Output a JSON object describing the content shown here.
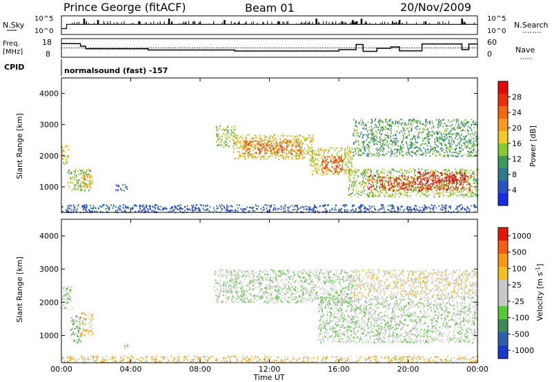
{
  "header": {
    "station": "Prince George (fitACF)",
    "beam": "Beam 01",
    "date": "20/Nov/2009"
  },
  "strip_labels": {
    "nsky": "N.Sky",
    "nsky_ticks": [
      "10^5",
      "10^0"
    ],
    "nsearch": "N.Search",
    "nsearch_ticks": [
      "10^5",
      "10^0"
    ],
    "freq_line1": "Freq.",
    "freq_line2": "[MHz]",
    "freq_ticks": [
      "18",
      "8"
    ],
    "nave": "Nave",
    "nave_ticks": [
      "60",
      "0"
    ],
    "cpid": "CPID",
    "mode": "normalsound (fast) -157"
  },
  "axes": {
    "x_label": "Time UT",
    "x_ticks": [
      "00:00",
      "04:00",
      "08:00",
      "12:00",
      "16:00",
      "20:00",
      "00:00"
    ],
    "y_label": "Slant Range [km]",
    "y_ticks": [
      "1000",
      "2000",
      "3000",
      "4000"
    ],
    "y_range_km": [
      180,
      4500
    ],
    "x_range_hours": [
      0,
      24
    ]
  },
  "colorbars": {
    "power": {
      "label": "Power [dB]",
      "ticks": [
        "4",
        "8",
        "12",
        "16",
        "20",
        "24",
        "28"
      ],
      "colors": [
        "#1a2be0",
        "#2a52c0",
        "#2e7a8a",
        "#3d9a5a",
        "#8ac832",
        "#f0c828",
        "#f59a1e",
        "#f06a16",
        "#e8320e",
        "#e00a0a"
      ]
    },
    "velocity": {
      "label": "Velocity [m s",
      "label_sup": "-1",
      "label_end": "]",
      "ticks": [
        "1000",
        "500",
        "100",
        "25",
        "-25",
        "-100",
        "-500",
        "-1000"
      ],
      "colors": [
        "#1a38c8",
        "#2e60a8",
        "#3a8a5a",
        "#58c83a",
        "#c8c8c8",
        "#c8c8c8",
        "#f0c020",
        "#f59a18",
        "#f06010",
        "#e01a0a"
      ]
    }
  },
  "chart_data": [
    {
      "type": "line",
      "title": "N.Sky / N.Search",
      "x_range": [
        0,
        24
      ],
      "step_levels": [
        {
          "t_start": 0.0,
          "t_end": 0.3,
          "value": 0.3
        },
        {
          "t_start": 0.3,
          "t_end": 24.0,
          "value": 0.55
        }
      ],
      "spikes_hours": [
        1.3,
        2.1,
        4.5,
        6.2,
        9.4,
        12.5,
        14.7,
        16.8,
        17.0,
        17.3,
        19.5,
        21.0,
        23.1
      ]
    },
    {
      "type": "line",
      "title": "Freq / Nave",
      "x_range": [
        0,
        24
      ],
      "freq_steps": [
        {
          "t_start": 0.0,
          "t_end": 1.1,
          "value": 15.5
        },
        {
          "t_start": 1.1,
          "t_end": 1.4,
          "value": 14.0
        },
        {
          "t_start": 1.4,
          "t_end": 5.0,
          "value": 12.5
        },
        {
          "t_start": 5.0,
          "t_end": 10.0,
          "value": 11.8
        },
        {
          "t_start": 10.0,
          "t_end": 16.0,
          "value": 11.2
        },
        {
          "t_start": 16.0,
          "t_end": 17.0,
          "value": 12.0
        },
        {
          "t_start": 17.0,
          "t_end": 17.4,
          "value": 15.0
        },
        {
          "t_start": 17.4,
          "t_end": 18.2,
          "value": 11.0
        },
        {
          "t_start": 18.2,
          "t_end": 19.0,
          "value": 12.8
        },
        {
          "t_start": 19.0,
          "t_end": 19.5,
          "value": 13.6
        },
        {
          "t_start": 19.5,
          "t_end": 20.8,
          "value": 11.3
        },
        {
          "t_start": 20.8,
          "t_end": 23.1,
          "value": 15.3
        },
        {
          "t_start": 23.1,
          "t_end": 23.5,
          "value": 12.0
        },
        {
          "t_start": 23.5,
          "t_end": 24.0,
          "value": 15.3
        }
      ],
      "nave_level": 13.0
    },
    {
      "type": "heatmap",
      "title": "Power [dB]",
      "x_range": [
        0,
        24
      ],
      "y_range": [
        180,
        4500
      ],
      "regions": [
        {
          "t0": 0.0,
          "t1": 0.4,
          "r0": 1750,
          "r1": 2350,
          "level": 5
        },
        {
          "t0": 0.35,
          "t1": 1.7,
          "r0": 900,
          "r1": 1600,
          "level": 4
        },
        {
          "t0": 1.2,
          "t1": 1.8,
          "r0": 1000,
          "r1": 1500,
          "level": 6
        },
        {
          "t0": 3.1,
          "t1": 3.8,
          "r0": 900,
          "r1": 1100,
          "level": 1
        },
        {
          "t0": 8.9,
          "t1": 10.0,
          "r0": 2300,
          "r1": 3000,
          "level": 4
        },
        {
          "t0": 9.9,
          "t1": 14.5,
          "r0": 1900,
          "r1": 2700,
          "level": 5
        },
        {
          "t0": 10.5,
          "t1": 13.8,
          "r0": 2050,
          "r1": 2500,
          "level": 7
        },
        {
          "t0": 14.3,
          "t1": 16.8,
          "r0": 1400,
          "r1": 2300,
          "level": 5
        },
        {
          "t0": 15.0,
          "t1": 16.2,
          "r0": 1500,
          "r1": 2000,
          "level": 8
        },
        {
          "t0": 16.5,
          "t1": 24.0,
          "r0": 700,
          "r1": 1600,
          "level": 4
        },
        {
          "t0": 17.6,
          "t1": 23.6,
          "r0": 900,
          "r1": 1400,
          "level": 8
        },
        {
          "t0": 20.5,
          "t1": 23.3,
          "r0": 1150,
          "r1": 1500,
          "level": 9
        },
        {
          "t0": 16.8,
          "t1": 24.0,
          "r0": 2000,
          "r1": 3200,
          "level": 3
        },
        {
          "t0": 0.0,
          "t1": 24.0,
          "r0": 200,
          "r1": 450,
          "level": 1
        }
      ]
    },
    {
      "type": "heatmap",
      "title": "Velocity [m s-1]",
      "x_range": [
        0,
        24
      ],
      "y_range": [
        180,
        4500
      ],
      "regions": [
        {
          "t0": 0.0,
          "t1": 0.6,
          "r0": 1800,
          "r1": 2500,
          "level": 4
        },
        {
          "t0": 0.5,
          "t1": 1.1,
          "r0": 800,
          "r1": 1600,
          "level": 3
        },
        {
          "t0": 1.0,
          "t1": 1.8,
          "r0": 1000,
          "r1": 1700,
          "level": 6
        },
        {
          "t0": 3.6,
          "t1": 3.9,
          "r0": 600,
          "r1": 800,
          "level": 4
        },
        {
          "t0": 8.8,
          "t1": 16.8,
          "r0": 2000,
          "r1": 3000,
          "level": 4
        },
        {
          "t0": 14.8,
          "t1": 24.0,
          "r0": 800,
          "r1": 2200,
          "level": 4
        },
        {
          "t0": 16.8,
          "t1": 24.0,
          "r0": 2200,
          "r1": 3000,
          "level": 5
        },
        {
          "t0": 0.0,
          "t1": 24.0,
          "r0": 200,
          "r1": 400,
          "level": 6
        }
      ]
    }
  ]
}
